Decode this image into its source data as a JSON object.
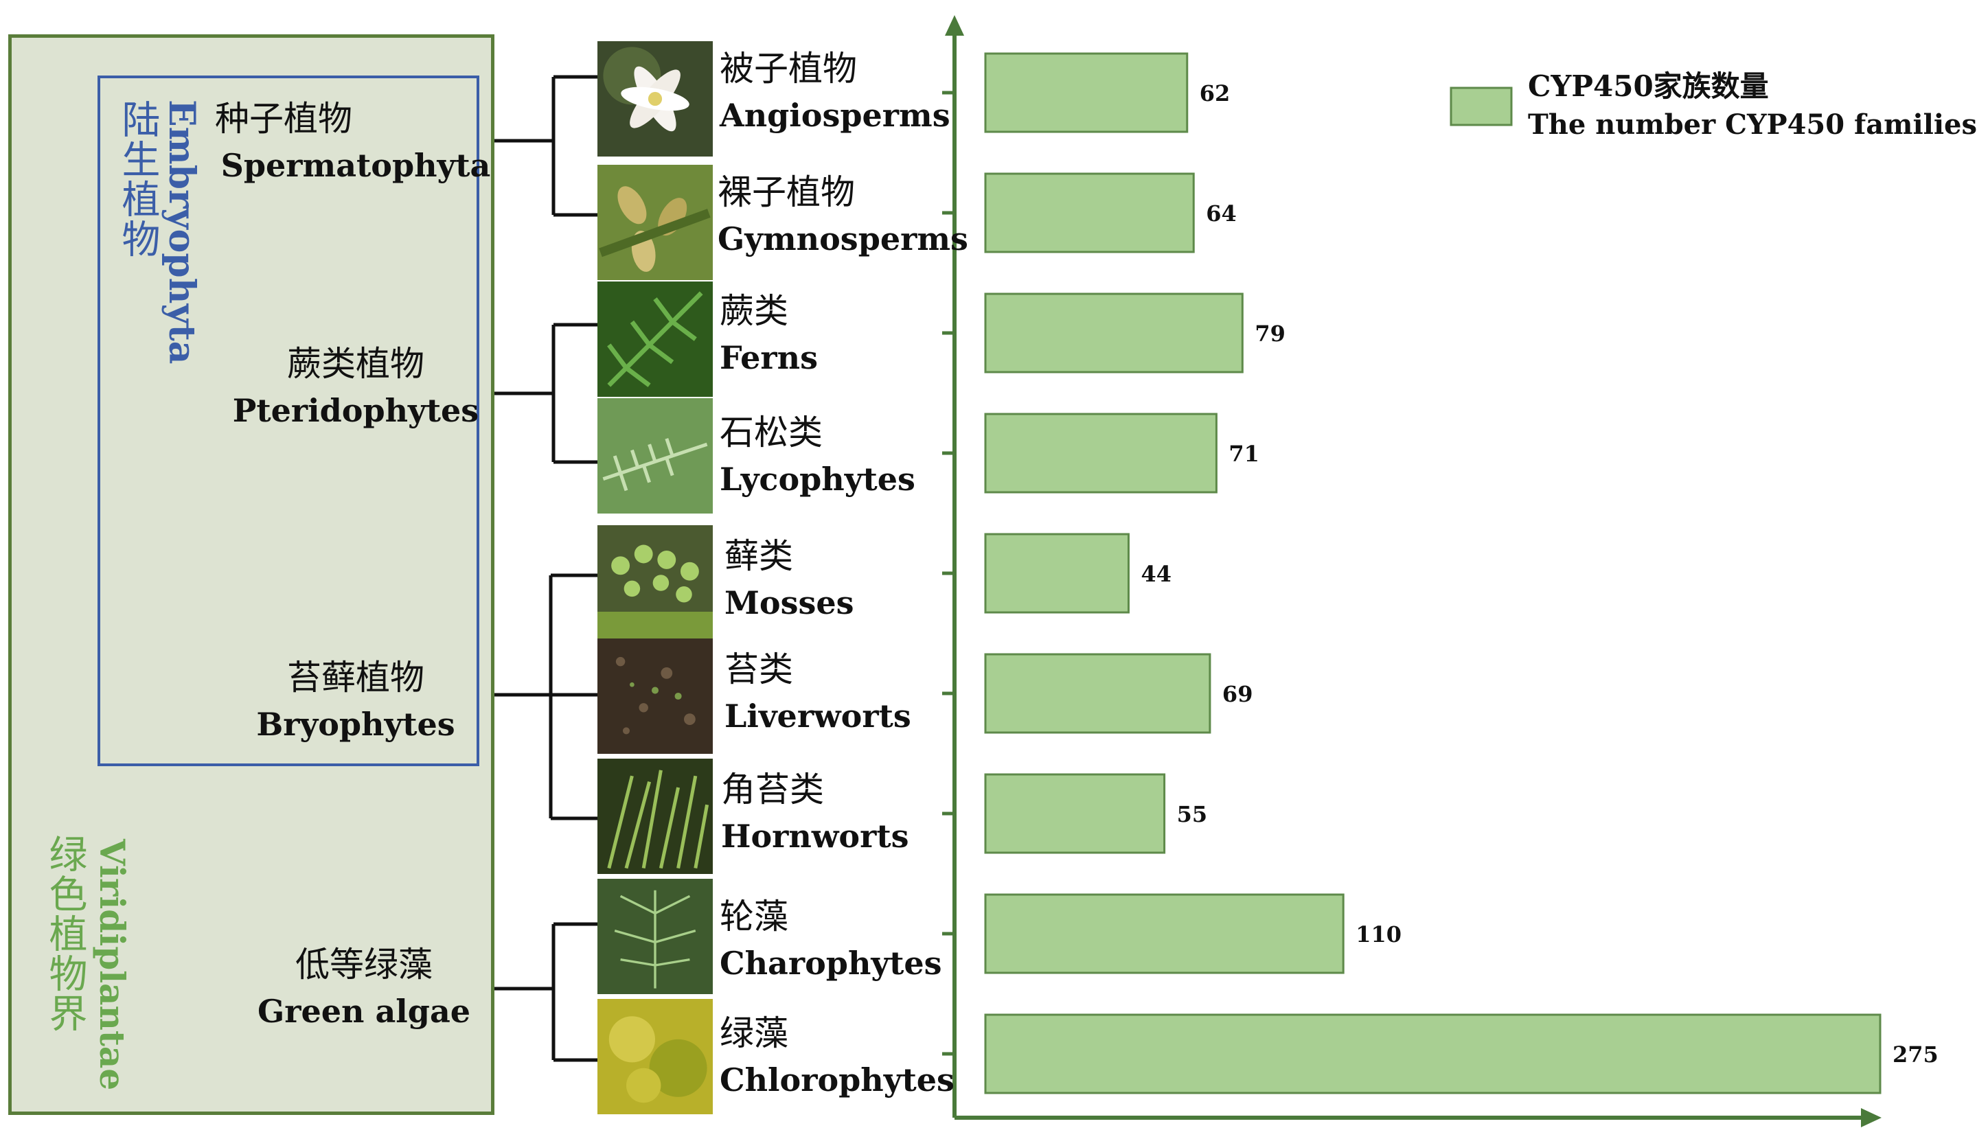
{
  "left_panel": {
    "kingdom": {
      "cn": "绿色植物界",
      "en": "Viridiplantae"
    },
    "embryophyta": {
      "cn": "陆生植物",
      "en": "Embryophyta"
    },
    "groups": [
      {
        "cn": "种子植物",
        "en": "Spermatophyta"
      },
      {
        "cn": "蕨类植物",
        "en": "Pteridophytes"
      },
      {
        "cn": "苔藓植物",
        "en": "Bryophytes"
      },
      {
        "cn": "低等绿藻",
        "en": "Green algae"
      }
    ]
  },
  "taxa": [
    {
      "cn": "被子植物",
      "en": "Angiosperms",
      "photo_icon": "lily-flower-photo"
    },
    {
      "cn": "裸子植物",
      "en": "Gymnosperms",
      "photo_icon": "conifer-cone-photo"
    },
    {
      "cn": "蕨类",
      "en": "Ferns",
      "photo_icon": "fern-frond-photo"
    },
    {
      "cn": "石松类",
      "en": "Lycophytes",
      "photo_icon": "lycophyte-sprig-photo"
    },
    {
      "cn": "藓类",
      "en": "Mosses",
      "photo_icon": "moss-capsules-photo"
    },
    {
      "cn": "苔类",
      "en": "Liverworts",
      "photo_icon": "liverwort-soil-photo"
    },
    {
      "cn": "角苔类",
      "en": "Hornworts",
      "photo_icon": "hornwort-horns-photo"
    },
    {
      "cn": "轮藻",
      "en": "Charophytes",
      "photo_icon": "charophyte-strands-photo"
    },
    {
      "cn": "绿藻",
      "en": "Chlorophytes",
      "photo_icon": "green-algae-photo"
    }
  ],
  "chart_data": {
    "type": "bar",
    "orientation": "horizontal",
    "categories": [
      "Angiosperms",
      "Gymnosperms",
      "Ferns",
      "Lycophytes",
      "Mosses",
      "Liverworts",
      "Hornworts",
      "Charophytes",
      "Chlorophytes"
    ],
    "series": [
      {
        "name": "CYP450家族数量 The number CYP450 families",
        "values": [
          62,
          64,
          79,
          71,
          44,
          69,
          55,
          110,
          275
        ]
      }
    ],
    "data_labels": [
      "62",
      "64",
      "79",
      "71",
      "44",
      "69",
      "55",
      "110",
      "275"
    ],
    "xlim": [
      0,
      275
    ],
    "grid": false,
    "legend_position": "top-right"
  },
  "legend": {
    "line1": "CYP450家族数量",
    "line2": "The number CYP450 families"
  },
  "colors": {
    "bar_fill": "#a8cf92",
    "bar_stroke": "#5e8a4a",
    "axis": "#4a7a3a",
    "panel_bg": "#dde3d2",
    "panel_border": "#5a7d3a",
    "embryo_border": "#3b5ea8",
    "embryo_text": "#3b5ea8",
    "kingdom_text": "#6aa84f"
  }
}
